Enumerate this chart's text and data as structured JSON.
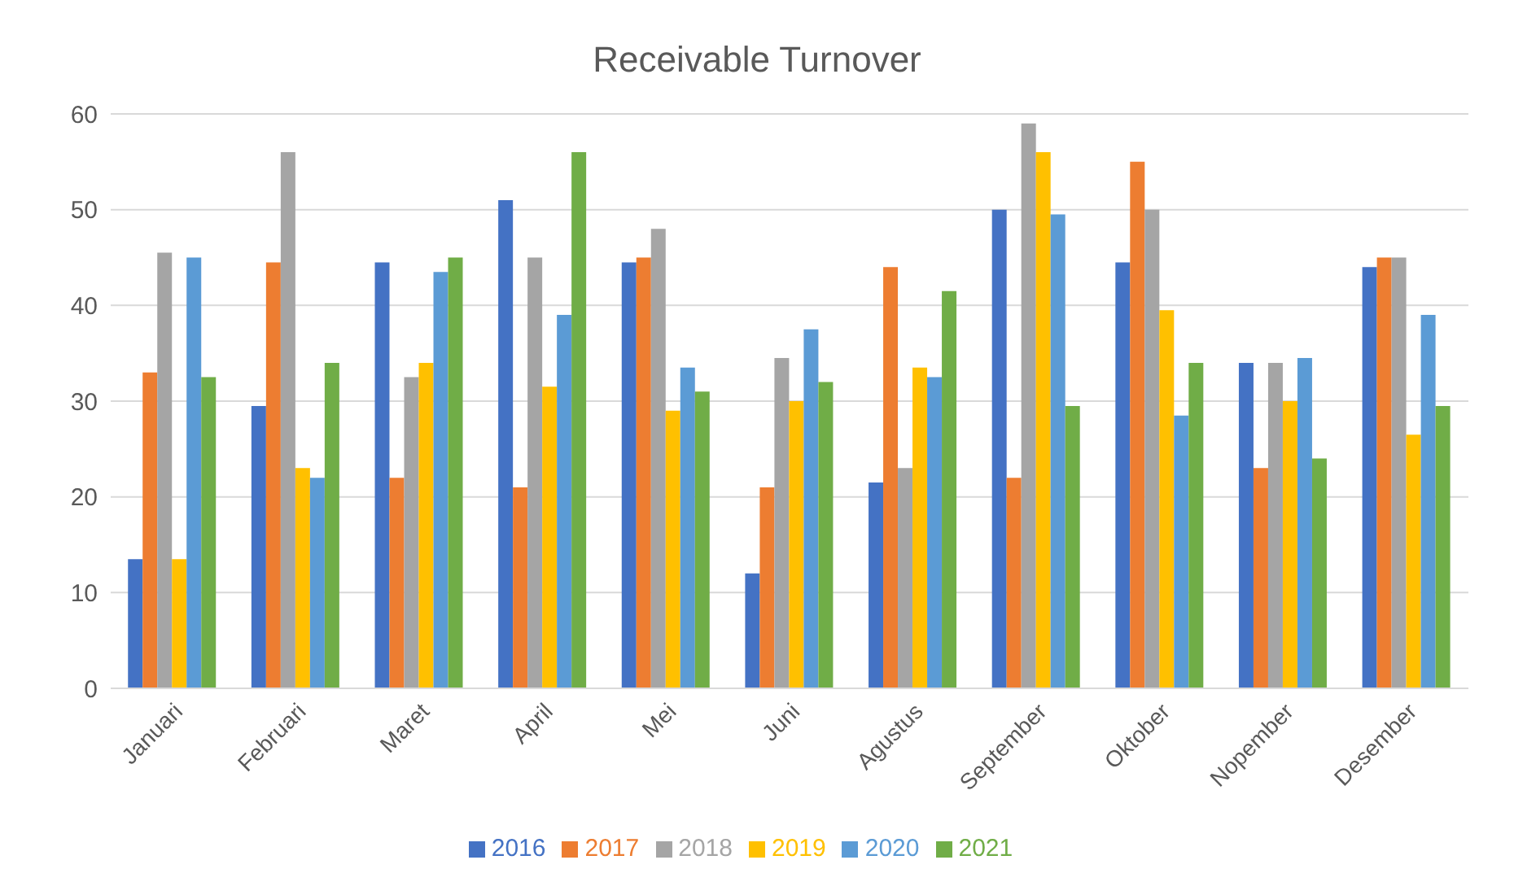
{
  "chart_data": {
    "type": "bar",
    "title": "Receivable Turnover",
    "categories": [
      "Januari",
      "Februari",
      "Maret",
      "April",
      "Mei",
      "Juni",
      "Agustus",
      "September",
      "Oktober",
      "Nopember",
      "Desember"
    ],
    "series": [
      {
        "name": "2016",
        "color": "#4472c4",
        "values": [
          13.5,
          29.5,
          44.5,
          51,
          44.5,
          12,
          21.5,
          50,
          44.5,
          34,
          44
        ]
      },
      {
        "name": "2017",
        "color": "#ed7d31",
        "values": [
          33,
          44.5,
          22,
          21,
          45,
          21,
          44,
          22,
          55,
          23,
          45
        ]
      },
      {
        "name": "2018",
        "color": "#a5a5a5",
        "values": [
          45.5,
          56,
          32.5,
          45,
          48,
          34.5,
          23,
          59,
          50,
          34,
          45
        ]
      },
      {
        "name": "2019",
        "color": "#ffc000",
        "values": [
          13.5,
          23,
          34,
          31.5,
          29,
          30,
          33.5,
          56,
          39.5,
          30,
          26.5
        ]
      },
      {
        "name": "2020",
        "color": "#5b9bd5",
        "values": [
          45,
          22,
          43.5,
          39,
          33.5,
          37.5,
          32.5,
          49.5,
          28.5,
          34.5,
          39
        ]
      },
      {
        "name": "2021",
        "color": "#70ad47",
        "values": [
          32.5,
          34,
          45,
          56,
          31,
          32,
          41.5,
          29.5,
          34,
          24,
          29.5
        ]
      }
    ],
    "ylim": [
      0,
      60
    ],
    "yticks": [
      0,
      10,
      20,
      30,
      40,
      50,
      60
    ],
    "grid": "y",
    "legend": "bottom"
  }
}
